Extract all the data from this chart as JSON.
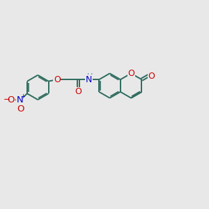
{
  "bg_color": "#e8e8e8",
  "bond_color": "#2d6b5e",
  "bond_width": 1.4,
  "atom_colors": {
    "O": "#cc0000",
    "N": "#0000cc",
    "C": "#2d6b5e",
    "H": "#5588aa",
    "NH": "#5588aa"
  },
  "font_size": 8.5,
  "fig_size": [
    3.0,
    3.0
  ],
  "dpi": 100,
  "xlim": [
    0,
    12
  ],
  "ylim": [
    0,
    10
  ]
}
